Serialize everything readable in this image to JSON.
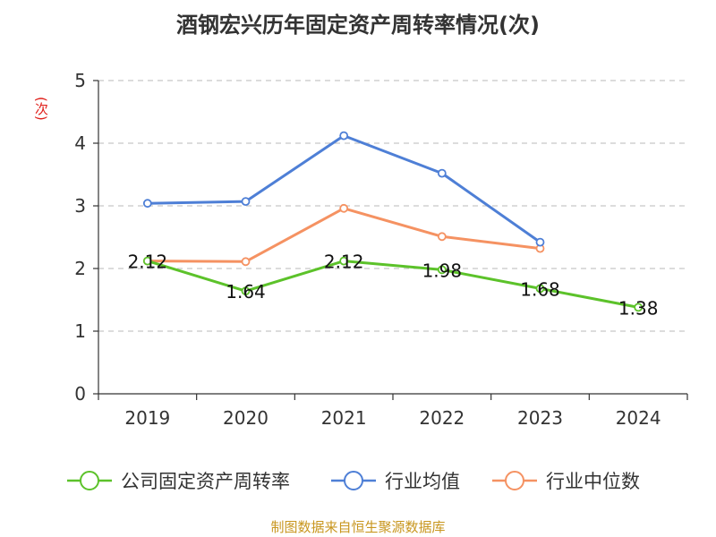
{
  "chart_data": {
    "type": "line",
    "title": "酒钢宏兴历年固定资产周转率情况(次)",
    "ylabel": "(次)",
    "categories": [
      "2019",
      "2020",
      "2021",
      "2022",
      "2023",
      "2024"
    ],
    "ylim": [
      0,
      5
    ],
    "yticks": [
      0,
      1,
      2,
      3,
      4,
      5
    ],
    "grid": true,
    "legend_position": "bottom",
    "series": [
      {
        "name": "公司固定资产周转率",
        "color": "#5cc22a",
        "values": [
          2.12,
          1.64,
          2.12,
          1.98,
          1.68,
          1.38
        ],
        "labels": [
          "2.12",
          "1.64",
          "2.12",
          "1.98",
          "1.68",
          "1.38"
        ]
      },
      {
        "name": "行业均值",
        "color": "#4e7fd6",
        "values": [
          3.04,
          3.07,
          4.12,
          3.52,
          2.42,
          null
        ]
      },
      {
        "name": "行业中位数",
        "color": "#f59262",
        "values": [
          2.12,
          2.11,
          2.96,
          2.51,
          2.32,
          null
        ]
      }
    ]
  },
  "source": "制图数据来自恒生聚源数据库"
}
